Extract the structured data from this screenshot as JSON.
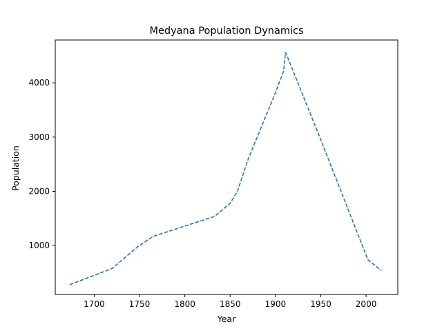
{
  "chart_data": {
    "type": "line",
    "title": "Medyana Population Dynamics",
    "xlabel": "Year",
    "ylabel": "Population",
    "xlim": [
      1657,
      2035
    ],
    "ylim": [
      100,
      4790
    ],
    "grid": false,
    "xticks": [
      1700,
      1750,
      1800,
      1850,
      1900,
      1950,
      2000
    ],
    "yticks": [
      1000,
      2000,
      3000,
      4000
    ],
    "series": [
      {
        "line_style": "dashed",
        "color": "#1f77b4",
        "x": [
          1673,
          1720,
          1748,
          1765,
          1800,
          1833,
          1850,
          1858,
          1870,
          1900,
          1909,
          1911,
          1913,
          1950,
          2002,
          2017
        ],
        "y": [
          280,
          580,
          980,
          1170,
          1360,
          1540,
          1780,
          2000,
          2600,
          3820,
          4220,
          4560,
          4490,
          2950,
          740,
          540
        ]
      }
    ]
  }
}
